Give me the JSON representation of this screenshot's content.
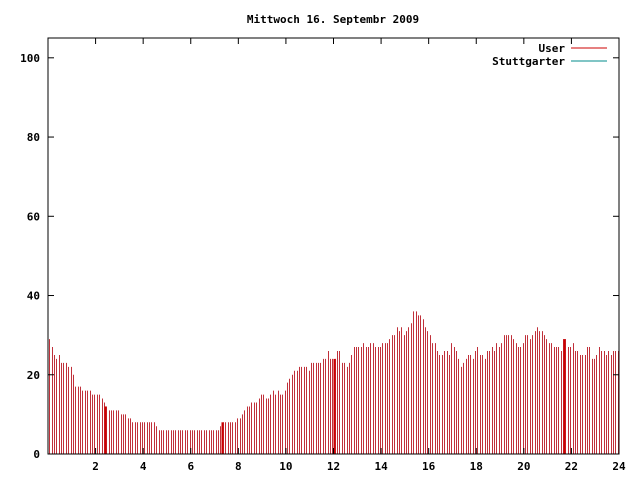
{
  "chart_data": {
    "type": "bar",
    "title": "Mittwoch 16. Septembr 2009",
    "xlabel": "",
    "ylabel": "",
    "xlim": [
      0,
      24
    ],
    "ylim": [
      0,
      105
    ],
    "x_ticks": [
      2,
      4,
      6,
      8,
      10,
      12,
      14,
      16,
      18,
      20,
      22,
      24
    ],
    "y_ticks": [
      0,
      20,
      40,
      60,
      80,
      100
    ],
    "x_tick_labels": [
      "2",
      "4",
      "6",
      "8",
      "10",
      "12",
      "14",
      "16",
      "18",
      "20",
      "22",
      "24"
    ],
    "y_tick_labels": [
      "0",
      "20",
      "40",
      "60",
      "80",
      "100"
    ],
    "grid": false,
    "legend": {
      "position": "top-right",
      "entries": [
        "User",
        "Stuttgarter"
      ]
    },
    "colors": {
      "User": "#cc0000",
      "Stuttgarter": "#008b8b",
      "bars": "#c0303a"
    },
    "series": [
      {
        "name": "User",
        "x_step_hours": 0.1,
        "values": [
          29,
          27,
          25,
          24,
          25,
          23,
          23,
          23,
          22,
          22,
          20,
          17,
          17,
          17,
          16,
          16,
          16,
          16,
          15,
          15,
          15,
          15,
          14,
          13,
          12,
          11,
          11,
          11,
          11,
          11,
          10,
          10,
          10,
          9,
          9,
          8,
          8,
          8,
          8,
          8,
          8,
          8,
          8,
          8,
          8,
          7,
          6,
          6,
          6,
          6,
          6,
          6,
          6,
          6,
          6,
          6,
          6,
          6,
          6,
          6,
          6,
          6,
          6,
          6,
          6,
          6,
          6,
          6,
          6,
          6,
          6,
          6,
          7,
          8,
          8,
          8,
          8,
          8,
          8,
          9,
          9,
          10,
          11,
          12,
          12,
          13,
          13,
          13,
          14,
          15,
          15,
          14,
          14,
          15,
          16,
          15,
          16,
          15,
          15,
          16,
          18,
          19,
          20,
          21,
          21,
          22,
          22,
          22,
          22,
          21,
          23,
          23,
          23,
          23,
          23,
          24,
          24,
          26,
          24,
          24,
          24,
          26,
          26,
          23,
          23,
          22,
          23,
          25,
          27,
          27,
          27,
          27,
          28,
          27,
          27,
          28,
          28,
          27,
          27,
          27,
          28,
          28,
          28,
          29,
          30,
          30,
          32,
          31,
          32,
          30,
          31,
          32,
          33,
          36,
          36,
          35,
          35,
          34,
          32,
          31,
          30,
          28,
          28,
          26,
          25,
          25,
          26,
          26,
          25,
          28,
          27,
          26,
          24,
          22,
          23,
          24,
          25,
          25,
          24,
          26,
          27,
          25,
          25,
          24,
          26,
          26,
          27,
          26,
          28,
          27,
          28,
          30,
          30,
          30,
          30,
          29,
          28,
          27,
          27,
          28,
          30,
          30,
          29,
          30,
          31,
          32,
          31,
          31,
          30,
          29,
          28,
          28,
          27,
          27,
          27,
          26,
          29,
          29,
          27,
          27,
          28,
          26,
          26,
          25,
          25,
          25,
          27,
          27,
          24,
          24,
          25,
          27,
          26,
          26,
          25,
          26,
          25,
          26,
          26,
          26
        ],
        "spikes_at_hours": [
          2.4,
          7.3,
          12.0,
          21.7
        ]
      },
      {
        "name": "Stuttgarter",
        "values": []
      }
    ]
  }
}
